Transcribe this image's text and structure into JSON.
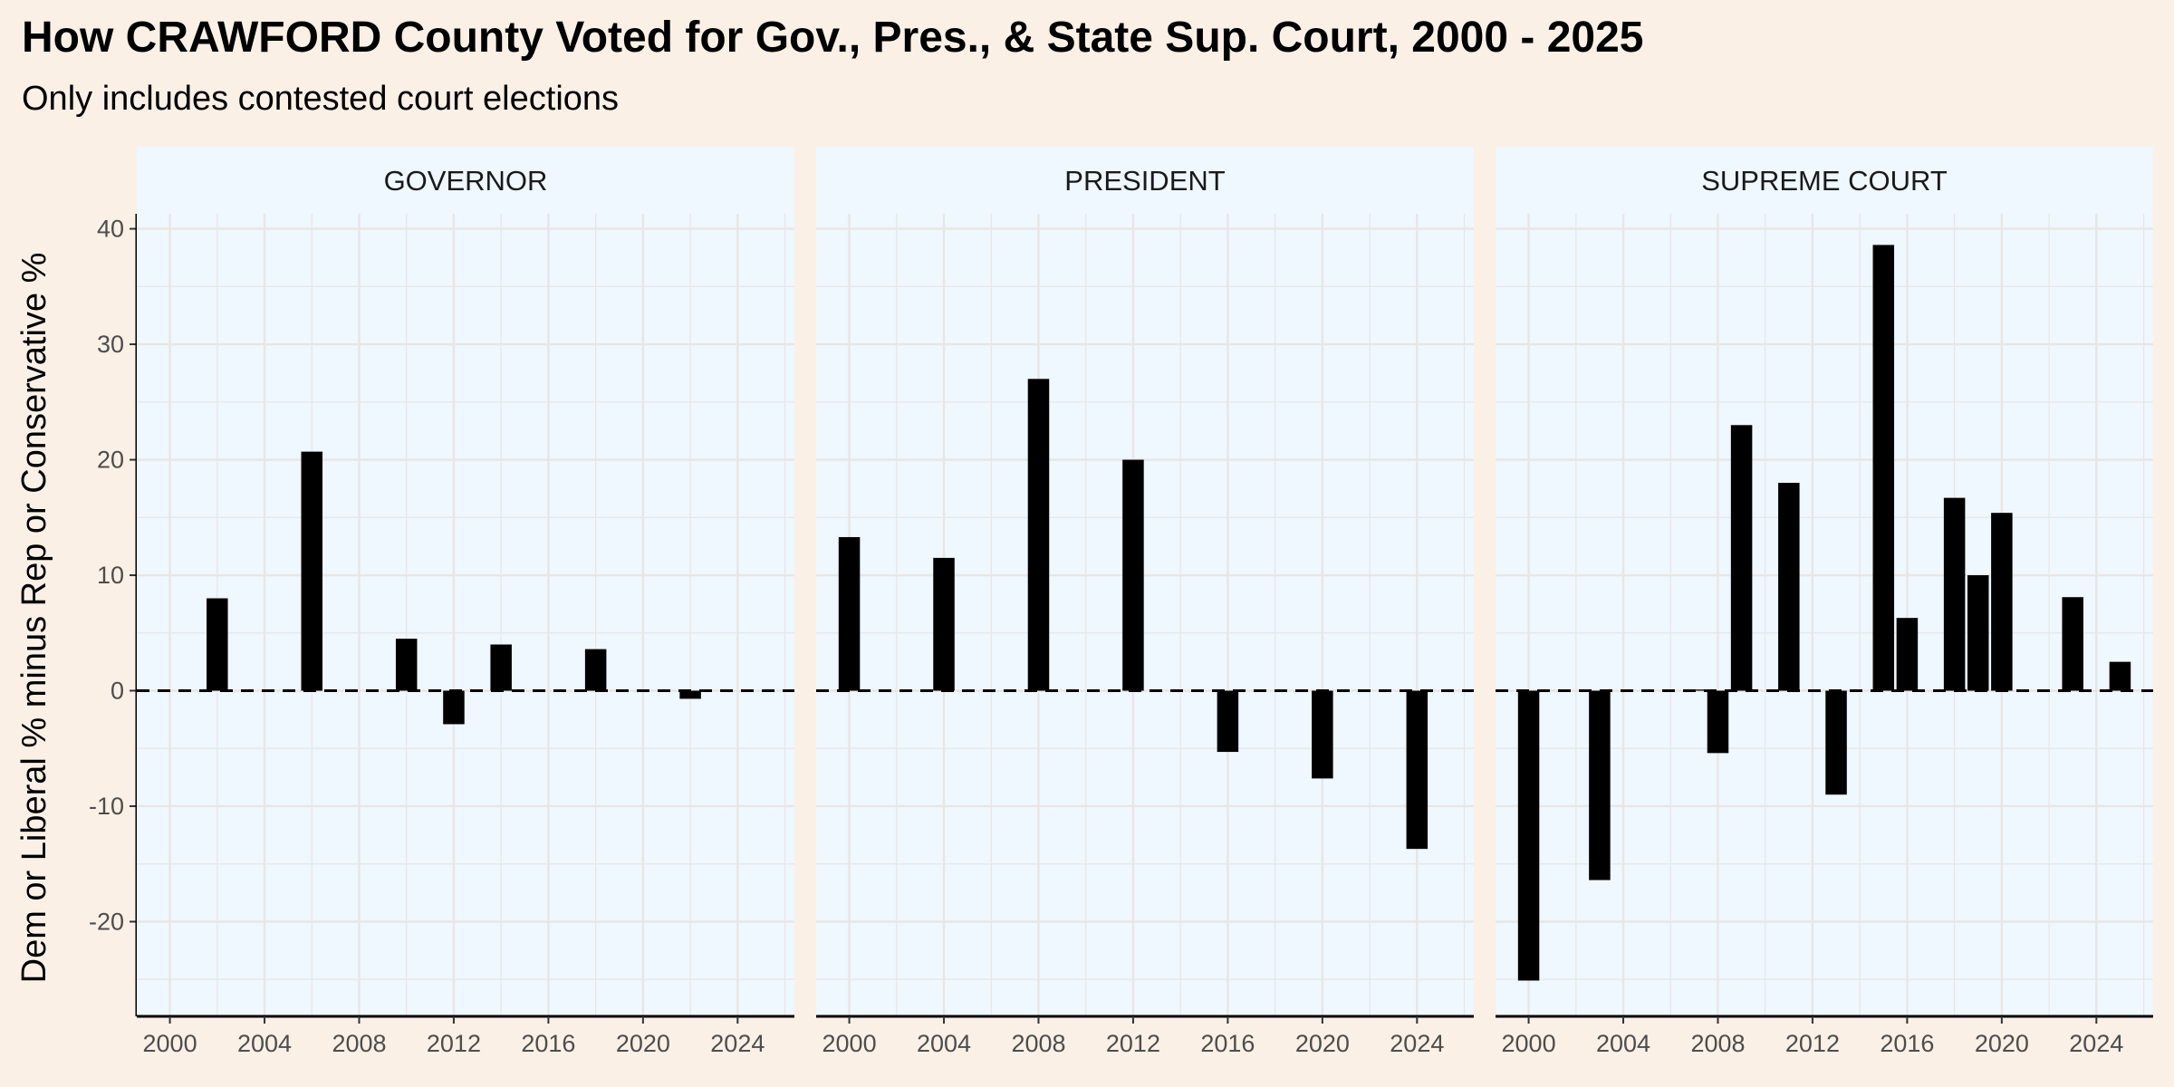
{
  "title": "How CRAWFORD County Voted for Gov., Pres., & State Sup. Court, 2000 - 2025",
  "subtitle": "Only includes contested court elections",
  "colors": {
    "background": "#fbf0e6",
    "panel": "#eff7ff",
    "strip": "#eff7ff",
    "grid": "#e8e6e4",
    "bar": "#000000",
    "reference_line": "#000000"
  },
  "chart_data": {
    "type": "bar",
    "ylabel": "Dem or Liberal % minus Rep or Conservative %",
    "xlabel": "",
    "x_range": [
      1998.6,
      2026.4
    ],
    "x_ticks": [
      2000,
      2004,
      2008,
      2012,
      2016,
      2020,
      2024
    ],
    "y_range": [
      -28.2,
      41.3
    ],
    "y_ticks": [
      -20,
      -10,
      0,
      10,
      20,
      30,
      40
    ],
    "reference_line": {
      "y": 0,
      "style": "dashed"
    },
    "grid": true,
    "legend": "none",
    "facets": [
      {
        "label": "GOVERNOR",
        "x": [
          2002,
          2006,
          2010,
          2012,
          2014,
          2018,
          2022
        ],
        "values": [
          8.0,
          20.7,
          4.5,
          -2.9,
          4.0,
          3.6,
          -0.7
        ]
      },
      {
        "label": "PRESIDENT",
        "x": [
          2000,
          2004,
          2008,
          2012,
          2016,
          2020,
          2024
        ],
        "values": [
          13.3,
          11.5,
          27.0,
          20.0,
          -5.3,
          -7.6,
          -13.7
        ]
      },
      {
        "label": "SUPREME COURT",
        "x": [
          2000,
          2003,
          2007,
          2008,
          2009,
          2011,
          2013,
          2015,
          2016,
          2018,
          2019,
          2020,
          2023,
          2025
        ],
        "values": [
          -25.1,
          -16.4,
          0.1,
          -5.4,
          23.0,
          18.0,
          -9.0,
          38.6,
          6.3,
          16.7,
          10.0,
          15.4,
          8.1,
          2.5
        ]
      }
    ]
  }
}
